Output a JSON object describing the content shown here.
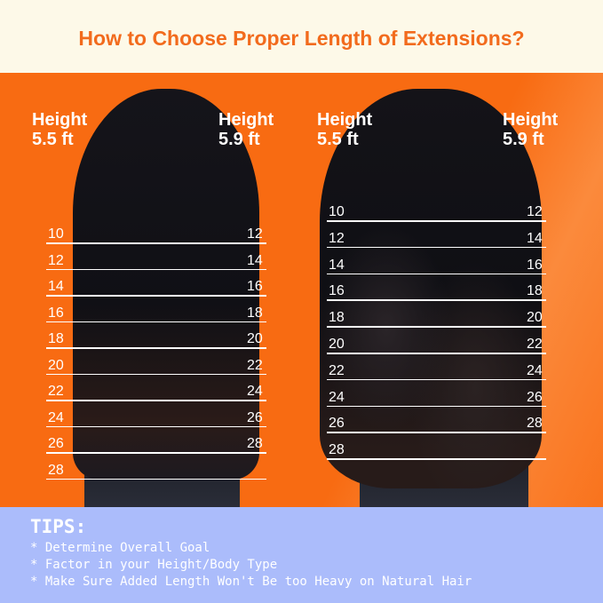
{
  "header": {
    "title": "How to Choose Proper Length of Extensions?"
  },
  "colors": {
    "accent": "#f26b1d",
    "orange_bg": "#f86b12",
    "tips_bg": "#abbcfb",
    "header_bg": "#fdf9e8"
  },
  "panels": [
    {
      "style": "straight",
      "left_label": [
        "Height",
        "5.5 ft"
      ],
      "right_label": [
        "Height",
        "5.9 ft"
      ],
      "left_lengths": [
        "10",
        "12",
        "14",
        "16",
        "18",
        "20",
        "22",
        "24",
        "26",
        "28"
      ],
      "right_lengths": [
        "12",
        "14",
        "16",
        "18",
        "20",
        "22",
        "24",
        "26",
        "28"
      ]
    },
    {
      "style": "wavy",
      "left_label": [
        "Height",
        "5.5 ft"
      ],
      "right_label": [
        "Height",
        "5.9 ft"
      ],
      "left_lengths": [
        "10",
        "12",
        "14",
        "16",
        "18",
        "20",
        "22",
        "24",
        "26",
        "28"
      ],
      "right_lengths": [
        "12",
        "14",
        "16",
        "18",
        "20",
        "22",
        "24",
        "26",
        "28"
      ]
    }
  ],
  "tips": {
    "title": "TIPS:",
    "items": [
      "* Determine Overall Goal",
      "* Factor in your Height/Body Type",
      "* Make Sure Added Length Won't Be too Heavy on Natural Hair"
    ]
  }
}
